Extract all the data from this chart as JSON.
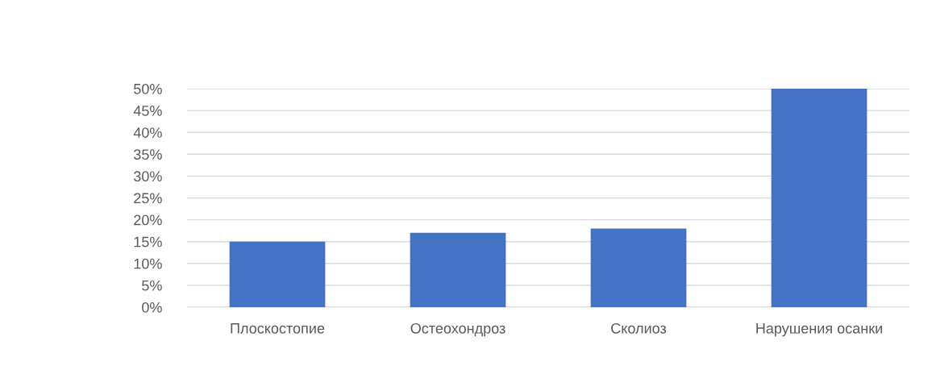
{
  "chart_data": {
    "type": "bar",
    "categories": [
      "Плоскостопие",
      "Остеохондроз",
      "Сколиоз",
      "Нарушения осанки"
    ],
    "values": [
      15,
      17,
      18,
      50
    ],
    "color": "#4472c4",
    "ylim": [
      0,
      50
    ],
    "yticks": [
      {
        "value": 0,
        "label": "0%"
      },
      {
        "value": 5,
        "label": "5%"
      },
      {
        "value": 10,
        "label": "10%"
      },
      {
        "value": 15,
        "label": "15%"
      },
      {
        "value": 20,
        "label": "20%"
      },
      {
        "value": 25,
        "label": "25%"
      },
      {
        "value": 30,
        "label": "30%"
      },
      {
        "value": 35,
        "label": "35%"
      },
      {
        "value": 40,
        "label": "40%"
      },
      {
        "value": 45,
        "label": "45%"
      },
      {
        "value": 50,
        "label": "50%"
      }
    ],
    "grid": "y"
  }
}
